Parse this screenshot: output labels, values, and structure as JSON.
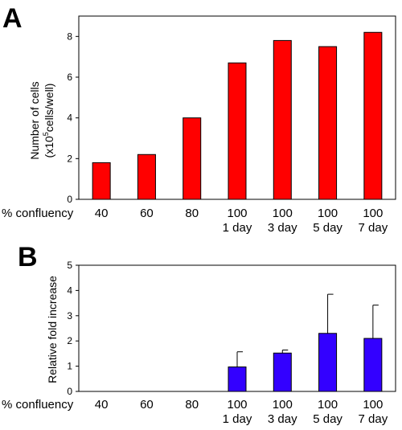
{
  "chart_data": [
    {
      "type": "bar",
      "panel": "A",
      "ylabel_line1": "Number of cells",
      "ylabel_line2_prefix": "(x10",
      "ylabel_line2_sup": "5",
      "ylabel_line2_suffix": "cells/well)",
      "ylim": [
        0,
        9
      ],
      "yticks": [
        "0",
        "2",
        "4",
        "6",
        "8"
      ],
      "ytick_values": [
        0,
        2,
        4,
        6,
        8
      ],
      "row_label": "% confluency",
      "categories_top": [
        "40",
        "60",
        "80",
        "100",
        "100",
        "100",
        "100"
      ],
      "categories_bottom": [
        "",
        "",
        "",
        "1 day",
        "3 day",
        "5 day",
        "7 day"
      ],
      "values": [
        1.8,
        2.2,
        4.0,
        6.7,
        7.8,
        7.5,
        8.2
      ],
      "bar_color": "#ff0000"
    },
    {
      "type": "bar",
      "panel": "B",
      "ylabel": "Relative fold increase",
      "ylim": [
        0,
        5
      ],
      "yticks": [
        "0",
        "1",
        "2",
        "3",
        "4",
        "5"
      ],
      "ytick_values": [
        0,
        1,
        2,
        3,
        4,
        5
      ],
      "row_label": "% confluency",
      "categories_top": [
        "40",
        "60",
        "80",
        "100",
        "100",
        "100",
        "100"
      ],
      "categories_bottom": [
        "",
        "",
        "",
        "1 day",
        "3 day",
        "5 day",
        "7 day"
      ],
      "values": [
        null,
        null,
        null,
        0.97,
        1.52,
        2.3,
        2.1
      ],
      "errors": [
        null,
        null,
        null,
        0.6,
        0.12,
        1.55,
        1.32
      ],
      "bar_color": "#3300ff"
    }
  ]
}
